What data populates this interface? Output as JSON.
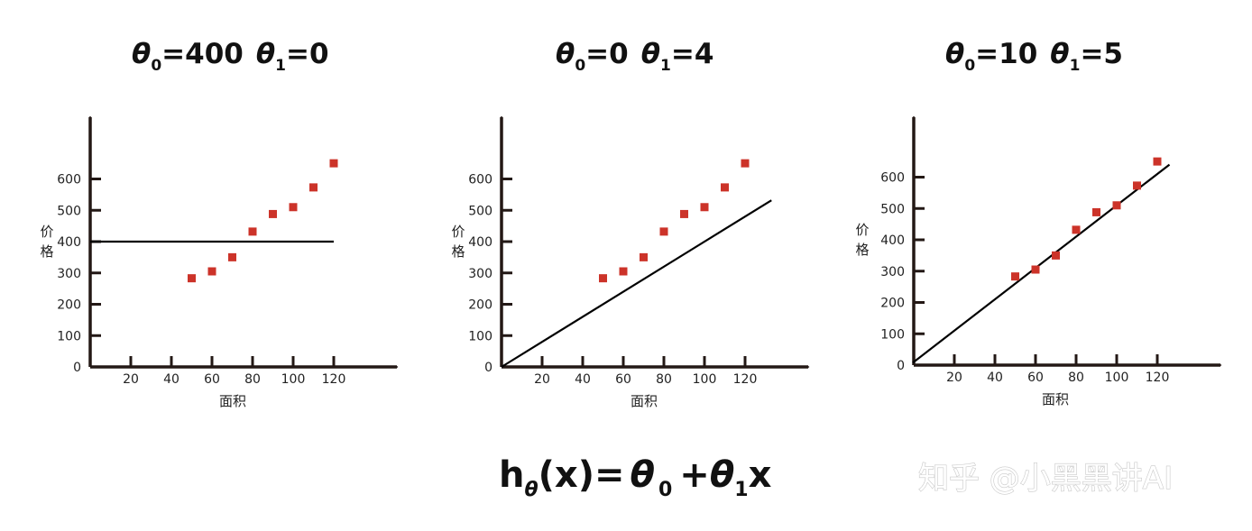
{
  "chart_data": [
    {
      "type": "scatter",
      "title": {
        "theta0_symbol": "θ",
        "theta0_sub": "0",
        "theta0_value": "=400",
        "theta1_symbol": "θ",
        "theta1_sub": "1",
        "theta1_value": "=0"
      },
      "theta0": 400,
      "theta1": 0,
      "xlabel": "面积",
      "ylabel": "价格",
      "x_ticks": [
        "20",
        "40",
        "60",
        "80",
        "100",
        "120"
      ],
      "y_ticks": [
        "0",
        "100",
        "200",
        "300",
        "400",
        "500",
        "600"
      ],
      "points": [
        [
          50,
          283
        ],
        [
          60,
          305
        ],
        [
          70,
          350
        ],
        [
          80,
          432
        ],
        [
          90,
          488
        ],
        [
          100,
          510
        ],
        [
          110,
          573
        ],
        [
          120,
          650
        ]
      ],
      "fit_line": {
        "from_x": 0,
        "to_x": 120
      },
      "point_color": "#cc3329",
      "line_color": "#000000"
    },
    {
      "type": "scatter",
      "title": {
        "theta0_symbol": "θ",
        "theta0_sub": "0",
        "theta0_value": "=0",
        "theta1_symbol": "θ",
        "theta1_sub": "1",
        "theta1_value": "=4"
      },
      "theta0": 0,
      "theta1": 4,
      "xlabel": "面积",
      "ylabel": "价格",
      "x_ticks": [
        "20",
        "40",
        "60",
        "80",
        "100",
        "120"
      ],
      "y_ticks": [
        "0",
        "100",
        "200",
        "300",
        "400",
        "500",
        "600"
      ],
      "points": [
        [
          50,
          283
        ],
        [
          60,
          305
        ],
        [
          70,
          350
        ],
        [
          80,
          432
        ],
        [
          90,
          488
        ],
        [
          100,
          510
        ],
        [
          110,
          573
        ],
        [
          120,
          650
        ]
      ],
      "fit_line": {
        "from_x": 0,
        "to_x": 133
      },
      "point_color": "#cc3329",
      "line_color": "#000000"
    },
    {
      "type": "scatter",
      "title": {
        "theta0_symbol": "θ",
        "theta0_sub": "0",
        "theta0_value": "=10",
        "theta1_symbol": "θ",
        "theta1_sub": "1",
        "theta1_value": "=5"
      },
      "theta0": 10,
      "theta1": 5,
      "xlabel": "面积",
      "ylabel": "价格",
      "x_ticks": [
        "20",
        "40",
        "60",
        "80",
        "100",
        "120"
      ],
      "y_ticks": [
        "0",
        "100",
        "200",
        "300",
        "400",
        "500",
        "600"
      ],
      "points": [
        [
          50,
          283
        ],
        [
          60,
          305
        ],
        [
          70,
          350
        ],
        [
          80,
          432
        ],
        [
          90,
          488
        ],
        [
          100,
          510
        ],
        [
          110,
          573
        ],
        [
          120,
          650
        ]
      ],
      "fit_line": {
        "from_x": -0.5,
        "to_x": 126
      },
      "point_color": "#cc3329",
      "line_color": "#000000"
    }
  ],
  "formula": {
    "h": "h",
    "h_sub": "θ",
    "rest": "(x)=",
    "t0": "θ",
    "t0_sub": "0",
    "plus": "+",
    "t1": "θ",
    "t1_sub": "1",
    "x": "x"
  },
  "watermark": "知乎 @小黑黑讲AI"
}
